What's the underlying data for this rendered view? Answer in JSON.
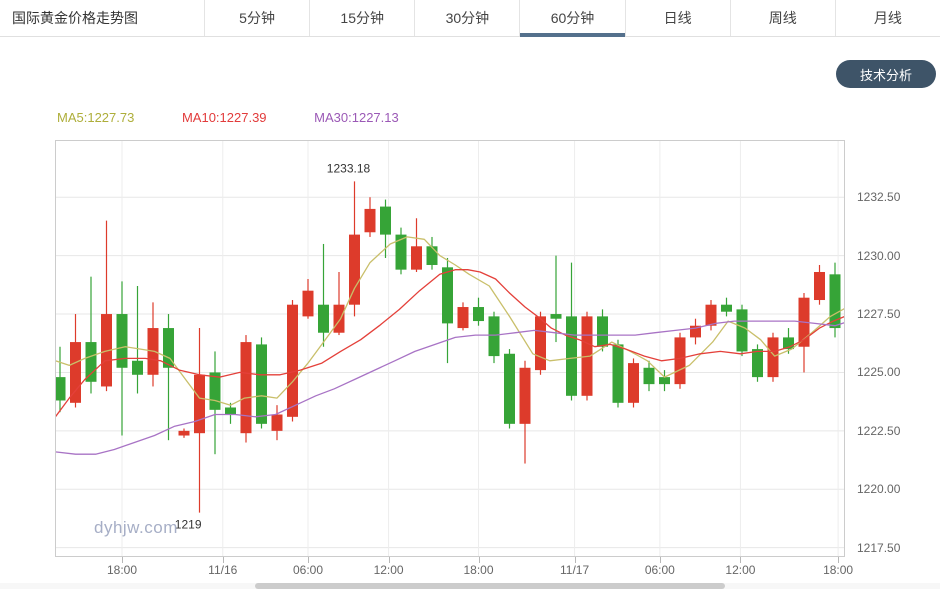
{
  "header": {
    "title": "国际黄金价格走势图",
    "tabs": [
      {
        "label": "5分钟",
        "active": false
      },
      {
        "label": "15分钟",
        "active": false
      },
      {
        "label": "30分钟",
        "active": false
      },
      {
        "label": "60分钟",
        "active": true
      },
      {
        "label": "日线",
        "active": false
      },
      {
        "label": "周线",
        "active": false
      },
      {
        "label": "月线",
        "active": false
      }
    ],
    "active_tab": "60分钟",
    "analysis_button": "技术分析",
    "active_underline_color": "#54708c",
    "button_color": "#3e5468"
  },
  "legend": {
    "ma5": {
      "text": "MA5:1227.73",
      "color": "#aeae3a"
    },
    "ma10": {
      "text": "MA10:1227.39",
      "color": "#e23b3b"
    },
    "ma30": {
      "text": "MA30:1227.13",
      "color": "#9b59b6"
    }
  },
  "chart_data": {
    "type": "candlestick",
    "title": "国际黄金价格走势图 60分钟",
    "ylim": [
      1217.1,
      1234.95
    ],
    "grid": true,
    "up_color": "#dd3b2b",
    "down_color": "#36a437",
    "y_ticks": [
      {
        "label": "1232.50",
        "value": 1232.5
      },
      {
        "label": "1230.00",
        "value": 1230.0
      },
      {
        "label": "1227.50",
        "value": 1227.5
      },
      {
        "label": "1225.00",
        "value": 1225.0
      },
      {
        "label": "1222.50",
        "value": 1222.5
      },
      {
        "label": "1220.00",
        "value": 1220.0
      },
      {
        "label": "1217.50",
        "value": 1217.5
      }
    ],
    "x_ticks": [
      {
        "label": "18:00",
        "pos": 4
      },
      {
        "label": "11/16",
        "pos": 10.5
      },
      {
        "label": "06:00",
        "pos": 16
      },
      {
        "label": "12:00",
        "pos": 21.2
      },
      {
        "label": "18:00",
        "pos": 27
      },
      {
        "label": "11/17",
        "pos": 33.2
      },
      {
        "label": "06:00",
        "pos": 38.7
      },
      {
        "label": "12:00",
        "pos": 43.9
      },
      {
        "label": "18:00",
        "pos": 50.2
      }
    ],
    "candles": [
      [
        1224.8,
        1226.1,
        1223.3,
        1223.8
      ],
      [
        1223.7,
        1227.5,
        1223.5,
        1226.3
      ],
      [
        1226.3,
        1229.1,
        1224.1,
        1224.6
      ],
      [
        1224.4,
        1231.5,
        1224.2,
        1227.5
      ],
      [
        1227.5,
        1228.9,
        1222.3,
        1225.2
      ],
      [
        1225.5,
        1228.7,
        1224.1,
        1224.9
      ],
      [
        1224.9,
        1228.0,
        1224.4,
        1226.9
      ],
      [
        1226.9,
        1227.5,
        1222.1,
        1225.2
      ],
      [
        1222.3,
        1222.6,
        1222.2,
        1222.5
      ],
      [
        1222.4,
        1226.9,
        1219.0,
        1224.9
      ],
      [
        1225.0,
        1225.9,
        1221.5,
        1223.4
      ],
      [
        1223.5,
        1223.7,
        1222.8,
        1223.2
      ],
      [
        1222.4,
        1226.6,
        1222.0,
        1226.3
      ],
      [
        1226.2,
        1226.5,
        1222.6,
        1222.8
      ],
      [
        1222.5,
        1223.6,
        1222.1,
        1223.2
      ],
      [
        1223.1,
        1228.1,
        1222.9,
        1227.9
      ],
      [
        1227.4,
        1229.0,
        1227.3,
        1228.5
      ],
      [
        1227.9,
        1230.5,
        1226.1,
        1226.7
      ],
      [
        1226.7,
        1229.3,
        1226.6,
        1227.9
      ],
      [
        1227.9,
        1233.18,
        1227.4,
        1230.9
      ],
      [
        1231.0,
        1232.5,
        1230.8,
        1232.0
      ],
      [
        1232.1,
        1232.4,
        1229.9,
        1230.9
      ],
      [
        1230.9,
        1231.2,
        1229.2,
        1229.4
      ],
      [
        1229.4,
        1231.6,
        1229.3,
        1230.4
      ],
      [
        1230.4,
        1230.8,
        1229.4,
        1229.6
      ],
      [
        1229.5,
        1229.9,
        1225.4,
        1227.1
      ],
      [
        1226.9,
        1228.0,
        1226.8,
        1227.8
      ],
      [
        1227.8,
        1228.2,
        1227.0,
        1227.2
      ],
      [
        1227.4,
        1227.6,
        1225.4,
        1225.7
      ],
      [
        1225.8,
        1226.0,
        1222.6,
        1222.8
      ],
      [
        1222.8,
        1225.5,
        1221.1,
        1225.2
      ],
      [
        1225.1,
        1227.6,
        1224.9,
        1227.4
      ],
      [
        1227.5,
        1230.0,
        1226.3,
        1227.3
      ],
      [
        1227.4,
        1229.7,
        1223.8,
        1224.0
      ],
      [
        1224.0,
        1227.6,
        1223.8,
        1227.4
      ],
      [
        1227.4,
        1227.7,
        1225.9,
        1226.1
      ],
      [
        1226.2,
        1226.4,
        1223.5,
        1223.7
      ],
      [
        1223.7,
        1225.6,
        1223.5,
        1225.4
      ],
      [
        1225.2,
        1225.5,
        1224.2,
        1224.5
      ],
      [
        1224.8,
        1225.1,
        1224.2,
        1224.5
      ],
      [
        1224.5,
        1226.7,
        1224.3,
        1226.5
      ],
      [
        1226.5,
        1227.3,
        1226.2,
        1227.0
      ],
      [
        1227.0,
        1228.1,
        1226.8,
        1227.9
      ],
      [
        1227.9,
        1228.2,
        1227.4,
        1227.6
      ],
      [
        1227.7,
        1227.9,
        1225.7,
        1225.9
      ],
      [
        1226.0,
        1226.2,
        1224.6,
        1224.8
      ],
      [
        1224.8,
        1226.7,
        1224.6,
        1226.5
      ],
      [
        1226.5,
        1226.9,
        1225.8,
        1226.0
      ],
      [
        1226.1,
        1228.4,
        1225.0,
        1228.2
      ],
      [
        1228.1,
        1229.6,
        1227.9,
        1229.3
      ],
      [
        1229.2,
        1229.7,
        1226.5,
        1226.9
      ]
    ],
    "series": [
      {
        "name": "MA5",
        "color": "#c9bf6a",
        "points": [
          [
            -0.3,
            1225.5
          ],
          [
            0.6,
            1225.3
          ],
          [
            1.6,
            1225.6
          ],
          [
            2.9,
            1225.9
          ],
          [
            4.2,
            1226.1
          ],
          [
            5.2,
            1226.0
          ],
          [
            6.1,
            1225.9
          ],
          [
            7.1,
            1225.6
          ],
          [
            8.1,
            1224.7
          ],
          [
            9,
            1223.9
          ],
          [
            10,
            1223.8
          ],
          [
            11,
            1223.6
          ],
          [
            11.9,
            1223.9
          ],
          [
            13,
            1224.0
          ],
          [
            14,
            1223.9
          ],
          [
            15,
            1224.6
          ],
          [
            16,
            1225.4
          ],
          [
            17,
            1226.3
          ],
          [
            18.1,
            1227.3
          ],
          [
            19,
            1228.6
          ],
          [
            20,
            1229.7
          ],
          [
            21.3,
            1230.5
          ],
          [
            22.4,
            1230.8
          ],
          [
            23.5,
            1230.7
          ],
          [
            24.5,
            1230.0
          ],
          [
            25.5,
            1229.6
          ],
          [
            26.4,
            1229.2
          ],
          [
            27.7,
            1228.7
          ],
          [
            29,
            1227.4
          ],
          [
            30.5,
            1225.8
          ],
          [
            31.6,
            1225.5
          ],
          [
            32.9,
            1225.6
          ],
          [
            34.2,
            1225.7
          ],
          [
            35.6,
            1226.3
          ],
          [
            36.8,
            1225.9
          ],
          [
            37.9,
            1225.5
          ],
          [
            39,
            1224.8
          ],
          [
            40.6,
            1225.3
          ],
          [
            42.1,
            1226.3
          ],
          [
            43.1,
            1227.2
          ],
          [
            44.2,
            1226.9
          ],
          [
            45.2,
            1226.4
          ],
          [
            46.1,
            1225.7
          ],
          [
            47.2,
            1226.0
          ],
          [
            48.5,
            1226.7
          ],
          [
            49.7,
            1227.4
          ],
          [
            50.6,
            1227.73
          ]
        ]
      },
      {
        "name": "MA10",
        "color": "#e4403a",
        "points": [
          [
            -0.3,
            1223.1
          ],
          [
            0.6,
            1223.9
          ],
          [
            1.6,
            1224.7
          ],
          [
            2.9,
            1225.5
          ],
          [
            4.2,
            1225.6
          ],
          [
            5.5,
            1225.6
          ],
          [
            6.5,
            1225.5
          ],
          [
            7.7,
            1225.1
          ],
          [
            9,
            1224.9
          ],
          [
            10.3,
            1224.8
          ],
          [
            11.6,
            1225.0
          ],
          [
            12.9,
            1224.9
          ],
          [
            14.2,
            1224.9
          ],
          [
            15.5,
            1225.1
          ],
          [
            16.9,
            1225.4
          ],
          [
            18.1,
            1225.9
          ],
          [
            19.4,
            1226.4
          ],
          [
            20.6,
            1227.0
          ],
          [
            21.9,
            1227.7
          ],
          [
            23.2,
            1228.5
          ],
          [
            24.5,
            1229.2
          ],
          [
            25.5,
            1229.4
          ],
          [
            26.3,
            1229.4
          ],
          [
            27.1,
            1229.3
          ],
          [
            28.1,
            1229.0
          ],
          [
            29,
            1228.4
          ],
          [
            30,
            1227.8
          ],
          [
            31,
            1227.3
          ],
          [
            31.7,
            1226.9
          ],
          [
            32.6,
            1226.6
          ],
          [
            33.5,
            1226.4
          ],
          [
            34.5,
            1226.1
          ],
          [
            35.5,
            1226.2
          ],
          [
            36.5,
            1226.0
          ],
          [
            37.7,
            1225.7
          ],
          [
            38.8,
            1225.5
          ],
          [
            40,
            1225.6
          ],
          [
            41.3,
            1225.8
          ],
          [
            42.6,
            1225.9
          ],
          [
            43.9,
            1225.8
          ],
          [
            45,
            1225.9
          ],
          [
            46.1,
            1225.9
          ],
          [
            47.1,
            1226.1
          ],
          [
            48,
            1226.4
          ],
          [
            49,
            1226.9
          ],
          [
            49.9,
            1227.2
          ],
          [
            50.6,
            1227.39
          ]
        ]
      },
      {
        "name": "MA30",
        "color": "#a873c5",
        "points": [
          [
            -0.3,
            1221.6
          ],
          [
            1,
            1221.5
          ],
          [
            2.3,
            1221.5
          ],
          [
            3.5,
            1221.7
          ],
          [
            4.8,
            1222.0
          ],
          [
            6.1,
            1222.3
          ],
          [
            7.4,
            1222.7
          ],
          [
            8.7,
            1222.9
          ],
          [
            10,
            1223.2
          ],
          [
            11.3,
            1223.2
          ],
          [
            12.6,
            1223.1
          ],
          [
            13.9,
            1223.2
          ],
          [
            15.2,
            1223.6
          ],
          [
            16.5,
            1224.0
          ],
          [
            17.7,
            1224.3
          ],
          [
            19,
            1224.7
          ],
          [
            20.3,
            1225.1
          ],
          [
            21.6,
            1225.5
          ],
          [
            22.9,
            1225.9
          ],
          [
            24.2,
            1226.2
          ],
          [
            25.5,
            1226.5
          ],
          [
            26.8,
            1226.6
          ],
          [
            28.1,
            1226.6
          ],
          [
            29.4,
            1226.7
          ],
          [
            30.6,
            1226.8
          ],
          [
            31.9,
            1226.7
          ],
          [
            33.2,
            1226.6
          ],
          [
            34.5,
            1226.6
          ],
          [
            35.8,
            1226.6
          ],
          [
            37.1,
            1226.6
          ],
          [
            38.4,
            1226.7
          ],
          [
            39.7,
            1226.8
          ],
          [
            41,
            1226.9
          ],
          [
            42.3,
            1227.1
          ],
          [
            43.5,
            1227.2
          ],
          [
            44.8,
            1227.2
          ],
          [
            46.1,
            1227.2
          ],
          [
            47.4,
            1227.2
          ],
          [
            48.7,
            1227.1
          ],
          [
            50,
            1227.0
          ],
          [
            50.6,
            1227.13
          ]
        ]
      }
    ],
    "annotations": {
      "high": {
        "label": "1233.18",
        "candle_index": 19,
        "value": 1233.18
      },
      "low": {
        "label": "1219",
        "candle_index": 9,
        "value": 1219.0
      }
    },
    "watermark": "dyhjw.com"
  }
}
